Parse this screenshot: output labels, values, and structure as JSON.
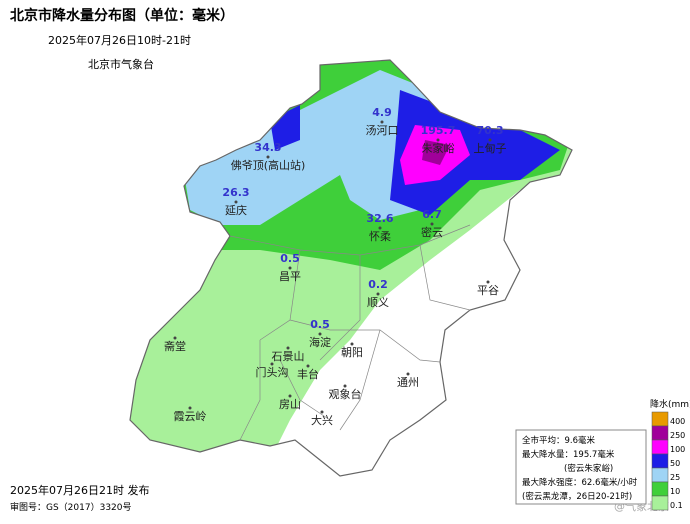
{
  "header": {
    "title": "北京市降水量分布图（单位：毫米）",
    "time": "2025年07月26日10时-21时",
    "source": "北京市气象台"
  },
  "stations": [
    {
      "name": "佛爷顶(高山站)",
      "value": 34.3
    },
    {
      "name": "延庆",
      "value": 26.3
    },
    {
      "name": "汤河口",
      "value": 4.9
    },
    {
      "name": "朱家峪",
      "value": 195.7
    },
    {
      "name": "上甸子",
      "value": 70.3
    },
    {
      "name": "怀柔",
      "value": 32.6
    },
    {
      "name": "密云",
      "value": 6.7
    },
    {
      "name": "昌平",
      "value": 0.5
    },
    {
      "name": "顺义",
      "value": 0.2
    },
    {
      "name": "海淀",
      "value": 0.5
    }
  ],
  "places": [
    "平谷",
    "斋堂",
    "石景山",
    "朝阳",
    "门头沟",
    "丰台",
    "通州",
    "房山",
    "观象台",
    "大兴",
    "霞云岭"
  ],
  "legend": {
    "title": "降水(mm)",
    "levels": [
      400,
      250,
      100,
      50,
      25,
      10,
      0.1
    ],
    "colors": [
      "#e89a00",
      "#a0009a",
      "#ff00ff",
      "#1e1ee6",
      "#9fd4f5",
      "#3fcf3a",
      "#a8f09a"
    ]
  },
  "stats": [
    "全市平均：9.6毫米",
    "最大降水量：195.7毫米",
    "(密云朱家峪)",
    "最大降水强度：62.6毫米/小时",
    "(密云黑龙潭，26日20-21时)"
  ],
  "footer": {
    "issued": "2025年07月26日21时 发布",
    "approval": "审图号：GS（2017）3320号"
  },
  "watermark": "@气象北京"
}
